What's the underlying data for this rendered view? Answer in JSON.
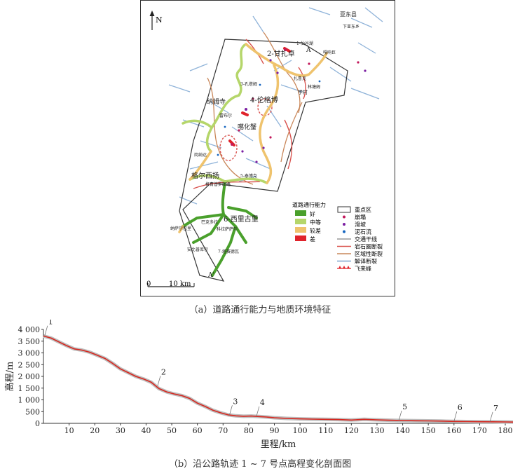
{
  "panel_a": {
    "caption": "（a）道路通行能力与地质环境特征",
    "north": "N",
    "scale": "10 km",
    "places": {
      "yadong_county": "亚东县",
      "xiayadong": "下亚东乡",
      "xiangu_lake": "1-仙谷湖",
      "gaxiangjiang": "嘎响巨",
      "ganzha": "2-甘扎卓",
      "marker_a": "A",
      "zhabeike": "扎鲁克",
      "kongsa": "3-孔塔姆",
      "lin_tang": "林塘姆",
      "xueru": "学村",
      "lungebo": "4-伦格博",
      "nahu_temple": "纳姆寺",
      "leibeier": "雷布尔",
      "gahuaxie": "噶化蟹",
      "gangda": "岗纳达",
      "taibeike": "5-泰博克",
      "geer_xiyang": "格尔西扬",
      "geyang_xiaoba": "格育普罗图路",
      "xilegui": "6-西里古里",
      "bakeduo": "巴克多拉",
      "naxiaer": "纳萨尔巴里",
      "kelexia": "科拉萨萨尔",
      "jiamiku": "安比普库尔",
      "tiaoxia": "7-塔赛德瓦",
      "marker_a2": "A'"
    },
    "legend_road": {
      "title": "道路通行能力",
      "items": [
        {
          "label": "好",
          "color": "#4aa02c"
        },
        {
          "label": "中等",
          "color": "#b5d66a"
        },
        {
          "label": "较差",
          "color": "#efc36d"
        },
        {
          "label": "差",
          "color": "#e0232b"
        }
      ]
    },
    "legend_geo": {
      "items": [
        {
          "label": "重点区",
          "kind": "box"
        },
        {
          "label": "崩塌",
          "kind": "dot",
          "color": "#c2185b"
        },
        {
          "label": "滑坡",
          "kind": "dot",
          "color": "#7b1fa2"
        },
        {
          "label": "泥石流",
          "kind": "dot",
          "color": "#1565c0"
        },
        {
          "label": "交通干线",
          "kind": "line",
          "color": "#999999"
        },
        {
          "label": "岩石圈断裂",
          "kind": "line",
          "color": "#d9534f"
        },
        {
          "label": "区域性断裂",
          "kind": "line",
          "color": "#c9875a"
        },
        {
          "label": "解译断裂",
          "kind": "line",
          "color": "#7aa6cf"
        },
        {
          "label": "飞来峰",
          "kind": "peak",
          "color": "#e0232b"
        }
      ]
    }
  },
  "panel_b": {
    "caption": "（b）沿公路轨迹 1 ~ 7 号点高程变化剖面图",
    "chart_data": {
      "type": "line",
      "xlabel": "里程/km",
      "ylabel": "高程/m",
      "xlim": [
        0,
        183
      ],
      "ylim": [
        0,
        4000
      ],
      "xticks": [
        10,
        20,
        30,
        40,
        50,
        60,
        70,
        80,
        90,
        100,
        110,
        120,
        130,
        140,
        150,
        160,
        170,
        180
      ],
      "yticks": [
        0,
        500,
        1000,
        1500,
        2000,
        2500,
        3000,
        3500,
        4000
      ],
      "ytick_labels": [
        "0",
        "500",
        "1 000",
        "1 500",
        "2 000",
        "2 500",
        "3 000",
        "3 500",
        "4 000"
      ],
      "series": [
        {
          "x": [
            0,
            3,
            6,
            9,
            12,
            15,
            18,
            21,
            24,
            27,
            30,
            33,
            36,
            39,
            42,
            45,
            48,
            51,
            54,
            57,
            60,
            63,
            66,
            69,
            72,
            75,
            78,
            81,
            84,
            87,
            90,
            95,
            100,
            105,
            110,
            115,
            120,
            125,
            130,
            135,
            140,
            145,
            150,
            155,
            160,
            165,
            170,
            175,
            180,
            183
          ],
          "y": [
            3720,
            3630,
            3470,
            3310,
            3170,
            3120,
            3030,
            2900,
            2760,
            2550,
            2320,
            2160,
            2000,
            1890,
            1750,
            1480,
            1340,
            1250,
            1180,
            1060,
            860,
            720,
            560,
            450,
            360,
            320,
            300,
            310,
            290,
            270,
            240,
            210,
            190,
            180,
            170,
            160,
            140,
            170,
            150,
            130,
            120,
            110,
            105,
            95,
            80,
            75,
            70,
            65,
            60,
            55
          ]
        }
      ],
      "points": [
        {
          "label": "1",
          "x": 0.5,
          "y": 3740
        },
        {
          "label": "2",
          "x": 44.5,
          "y": 1600
        },
        {
          "label": "3",
          "x": 72.5,
          "y": 350
        },
        {
          "label": "4",
          "x": 83,
          "y": 300
        },
        {
          "label": "5",
          "x": 138.5,
          "y": 120
        },
        {
          "label": "6",
          "x": 160,
          "y": 85
        },
        {
          "label": "7",
          "x": 174,
          "y": 65
        }
      ]
    }
  }
}
